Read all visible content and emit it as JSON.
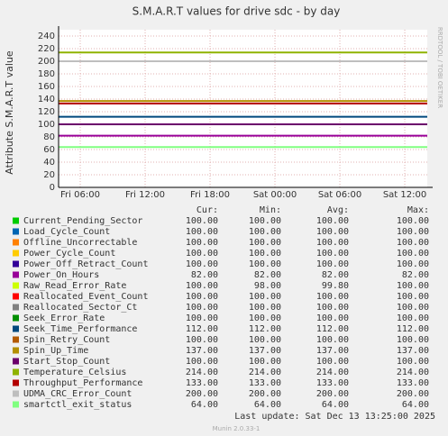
{
  "chart_data": {
    "type": "line",
    "title": "S.M.A.R.T values for drive sdc - by day",
    "y_label": "Attribute S.M.A.R.T value",
    "side_label": "RRDTOOL / TOBI OETIKER",
    "footer": "Last update:  Sat Dec 13 13:25:00 2025",
    "version": "Munin 2.0.33-1",
    "columns": [
      "Cur:",
      "Min:",
      "Avg:",
      "Max:"
    ],
    "ylim": [
      0,
      250
    ],
    "yticks": [
      0,
      20,
      40,
      60,
      80,
      100,
      120,
      140,
      160,
      180,
      200,
      220,
      240
    ],
    "xlim": [
      4,
      38.08
    ],
    "xticks": [
      {
        "value": 6,
        "label": "Fri 06:00"
      },
      {
        "value": 12,
        "label": "Fri 12:00"
      },
      {
        "value": 18,
        "label": "Fri 18:00"
      },
      {
        "value": 24,
        "label": "Sat 00:00"
      },
      {
        "value": 30,
        "label": "Sat 06:00"
      },
      {
        "value": 36,
        "label": "Sat 12:00"
      }
    ],
    "grid": true,
    "series": [
      {
        "name": "Current_Pending_Sector",
        "color": "#00cc00",
        "values": [
          100,
          100,
          100,
          100
        ],
        "value_labels": [
          "100.00",
          "100.00",
          "100.00",
          "100.00"
        ]
      },
      {
        "name": "Load_Cycle_Count",
        "color": "#0066b3",
        "values": [
          100,
          100,
          100,
          100
        ],
        "value_labels": [
          "100.00",
          "100.00",
          "100.00",
          "100.00"
        ]
      },
      {
        "name": "Offline_Uncorrectable",
        "color": "#ff8000",
        "values": [
          100,
          100,
          100,
          100
        ],
        "value_labels": [
          "100.00",
          "100.00",
          "100.00",
          "100.00"
        ]
      },
      {
        "name": "Power_Cycle_Count",
        "color": "#ffcc00",
        "values": [
          100,
          100,
          100,
          100
        ],
        "value_labels": [
          "100.00",
          "100.00",
          "100.00",
          "100.00"
        ]
      },
      {
        "name": "Power_Off_Retract_Count",
        "color": "#330099",
        "values": [
          100,
          100,
          100,
          100
        ],
        "value_labels": [
          "100.00",
          "100.00",
          "100.00",
          "100.00"
        ]
      },
      {
        "name": "Power_On_Hours",
        "color": "#990099",
        "values": [
          82,
          82,
          82,
          82
        ],
        "value_labels": [
          "82.00",
          "82.00",
          "82.00",
          "82.00"
        ]
      },
      {
        "name": "Raw_Read_Error_Rate",
        "color": "#ccff00",
        "values": [
          100,
          98,
          99.8,
          100
        ],
        "value_labels": [
          "100.00",
          "98.00",
          "99.80",
          "100.00"
        ]
      },
      {
        "name": "Reallocated_Event_Count",
        "color": "#ff0000",
        "values": [
          100,
          100,
          100,
          100
        ],
        "value_labels": [
          "100.00",
          "100.00",
          "100.00",
          "100.00"
        ]
      },
      {
        "name": "Reallocated_Sector_Ct",
        "color": "#808080",
        "values": [
          100,
          100,
          100,
          100
        ],
        "value_labels": [
          "100.00",
          "100.00",
          "100.00",
          "100.00"
        ]
      },
      {
        "name": "Seek_Error_Rate",
        "color": "#008f00",
        "values": [
          100,
          100,
          100,
          100
        ],
        "value_labels": [
          "100.00",
          "100.00",
          "100.00",
          "100.00"
        ]
      },
      {
        "name": "Seek_Time_Performance",
        "color": "#00487d",
        "values": [
          112,
          112,
          112,
          112
        ],
        "value_labels": [
          "112.00",
          "112.00",
          "112.00",
          "112.00"
        ]
      },
      {
        "name": "Spin_Retry_Count",
        "color": "#b35a00",
        "values": [
          100,
          100,
          100,
          100
        ],
        "value_labels": [
          "100.00",
          "100.00",
          "100.00",
          "100.00"
        ]
      },
      {
        "name": "Spin_Up_Time",
        "color": "#b38f00",
        "values": [
          137,
          137,
          137,
          137
        ],
        "value_labels": [
          "137.00",
          "137.00",
          "137.00",
          "137.00"
        ]
      },
      {
        "name": "Start_Stop_Count",
        "color": "#6b006b",
        "values": [
          100,
          100,
          100,
          100
        ],
        "value_labels": [
          "100.00",
          "100.00",
          "100.00",
          "100.00"
        ]
      },
      {
        "name": "Temperature_Celsius",
        "color": "#8fb300",
        "values": [
          214,
          214,
          214,
          214
        ],
        "value_labels": [
          "214.00",
          "214.00",
          "214.00",
          "214.00"
        ]
      },
      {
        "name": "Throughput_Performance",
        "color": "#b30000",
        "values": [
          133,
          133,
          133,
          133
        ],
        "value_labels": [
          "133.00",
          "133.00",
          "133.00",
          "133.00"
        ]
      },
      {
        "name": "UDMA_CRC_Error_Count",
        "color": "#bebebe",
        "values": [
          200,
          200,
          200,
          200
        ],
        "value_labels": [
          "200.00",
          "200.00",
          "200.00",
          "200.00"
        ]
      },
      {
        "name": "smartctl_exit_status",
        "color": "#80ff80",
        "values": [
          64,
          64,
          64,
          64
        ],
        "value_labels": [
          "64.00",
          "64.00",
          "64.00",
          "64.00"
        ]
      }
    ]
  }
}
